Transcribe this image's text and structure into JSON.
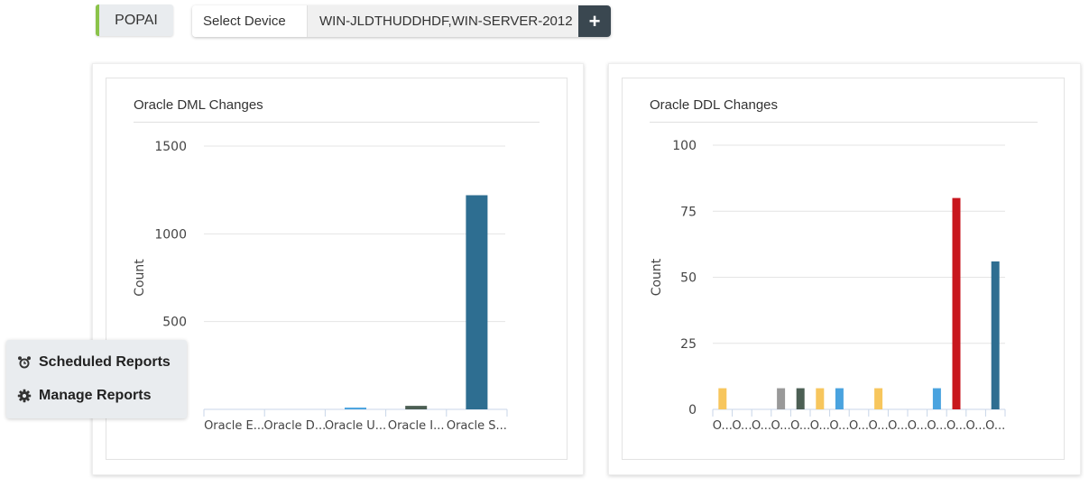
{
  "header": {
    "tab_label": "POPAI",
    "device_selector": {
      "label": "Select Device",
      "value": "WIN-JLDTHUDDHDF,WIN-SERVER-2012",
      "add_button": "+"
    }
  },
  "reports_menu": {
    "items": [
      {
        "label": "Scheduled Reports",
        "icon": "alarm-clock-icon"
      },
      {
        "label": "Manage Reports",
        "icon": "gear-icon"
      }
    ]
  },
  "chart_data": [
    {
      "type": "bar",
      "title": "Oracle DML Changes",
      "ylabel": "Count",
      "xlabel": "",
      "ylim": [
        0,
        1500
      ],
      "yticks": [
        "1500",
        "1000",
        "500"
      ],
      "grid": true,
      "categories": [
        "Oracle E...",
        "Oracle D...",
        "Oracle U...",
        "Oracle I...",
        "Oracle S..."
      ],
      "values": [
        0,
        0,
        10,
        20,
        1220
      ],
      "colors": [
        "#f7c65d",
        "#999999",
        "#4aa3df",
        "#4c5f54",
        "#2e6e91"
      ]
    },
    {
      "type": "bar",
      "title": "Oracle DDL Changes",
      "ylabel": "Count",
      "xlabel": "",
      "ylim": [
        0,
        100
      ],
      "yticks": [
        "100",
        "75",
        "50",
        "25",
        "0"
      ],
      "grid": true,
      "categories": [
        "O...",
        "O...",
        "O...",
        "O...",
        "O...",
        "O...",
        "O...",
        "O...",
        "O...",
        "O...",
        "O...",
        "O...",
        "O...",
        "O...",
        "O..."
      ],
      "values": [
        8,
        0,
        0,
        8,
        8,
        8,
        8,
        0,
        8,
        0,
        0,
        8,
        80,
        0,
        56
      ],
      "colors": [
        "#f7c65d",
        "#f7c65d",
        "#f7c65d",
        "#999999",
        "#4c5f54",
        "#f7c65d",
        "#4aa3df",
        "#4aa3df",
        "#f7c65d",
        "#f7c65d",
        "#4aa3df",
        "#4aa3df",
        "#c8161d",
        "#2e6e91",
        "#2e6e91"
      ]
    }
  ]
}
